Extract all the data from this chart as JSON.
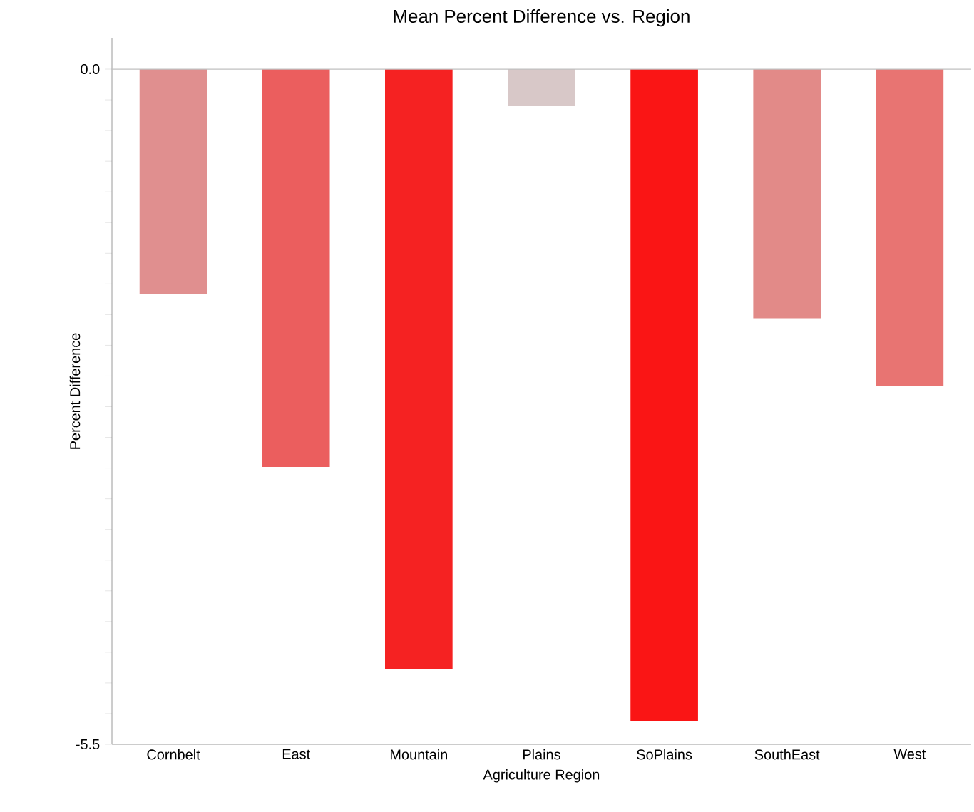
{
  "chart_data": {
    "type": "bar",
    "title": "Mean Percent Difference vs. Region",
    "xlabel": "Agriculture Region",
    "ylabel": "Percent Difference",
    "categories": [
      "Cornbelt",
      "East",
      "Mountain",
      "Plains",
      "SoPlains",
      "SouthEast",
      "West"
    ],
    "values": [
      -1.83,
      -3.24,
      -4.89,
      -0.3,
      -5.31,
      -2.03,
      -2.58
    ],
    "colors": [
      "#e08f8f",
      "#eb5e5e",
      "#f52222",
      "#d8c8c8",
      "#fa1515",
      "#e28a88",
      "#e87472"
    ],
    "ylim": [
      -5.5,
      0.25
    ],
    "yticks": [
      {
        "value": 0,
        "label": "0.0"
      },
      {
        "value": -0.25,
        "label": null
      },
      {
        "value": -0.5,
        "label": null
      },
      {
        "value": -0.75,
        "label": null
      },
      {
        "value": -1,
        "label": null
      },
      {
        "value": -1.25,
        "label": null
      },
      {
        "value": -1.5,
        "label": null
      },
      {
        "value": -1.75,
        "label": null
      },
      {
        "value": -2,
        "label": null
      },
      {
        "value": -2.25,
        "label": null
      },
      {
        "value": -2.5,
        "label": null
      },
      {
        "value": -2.75,
        "label": null
      },
      {
        "value": -3,
        "label": null
      },
      {
        "value": -3.25,
        "label": null
      },
      {
        "value": -3.5,
        "label": null
      },
      {
        "value": -3.75,
        "label": null
      },
      {
        "value": -4,
        "label": null
      },
      {
        "value": -4.25,
        "label": null
      },
      {
        "value": -4.5,
        "label": null
      },
      {
        "value": -4.75,
        "label": null
      },
      {
        "value": -5,
        "label": null
      },
      {
        "value": -5.25,
        "label": null
      },
      {
        "value": -5.5,
        "label": "-5.5"
      }
    ],
    "ref_lines": [
      {
        "axis": "y",
        "value": 0,
        "color": "#c0c0c0"
      }
    ]
  }
}
